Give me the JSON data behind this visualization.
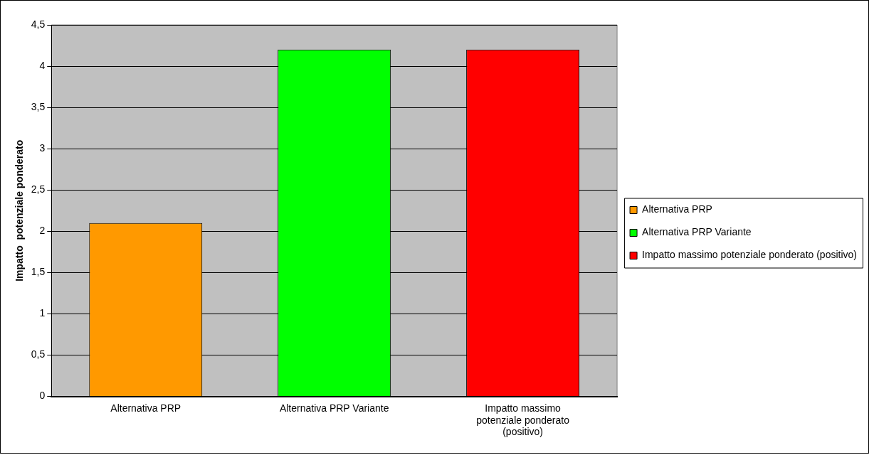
{
  "chart_data": {
    "type": "bar",
    "ylabel": "Impatto  potenziale ponderato",
    "categories": [
      "Alternativa PRP",
      "Alternativa PRP Variante",
      "Impatto massimo potenziale ponderato (positivo)"
    ],
    "series": [
      {
        "name": "Alternativa PRP",
        "color": "#ff9900",
        "values": [
          2.1,
          null,
          null
        ]
      },
      {
        "name": "Alternativa PRP Variante",
        "color": "#00ff00",
        "values": [
          null,
          4.2,
          null
        ]
      },
      {
        "name": "Impatto massimo potenziale ponderato (positivo)",
        "color": "#ff0000",
        "values": [
          null,
          null,
          4.2
        ]
      }
    ],
    "ylim": [
      0,
      4.5
    ],
    "yticks": [
      0,
      {
        "value": 0.5,
        "label": "0,5"
      },
      1,
      {
        "value": 1.5,
        "label": "1,5"
      },
      2,
      {
        "value": 2.5,
        "label": "2,5"
      },
      3,
      {
        "value": 3.5,
        "label": "3,5"
      },
      4,
      {
        "value": 4.5,
        "label": "4,5"
      }
    ],
    "grid": "y",
    "legend": "right"
  }
}
